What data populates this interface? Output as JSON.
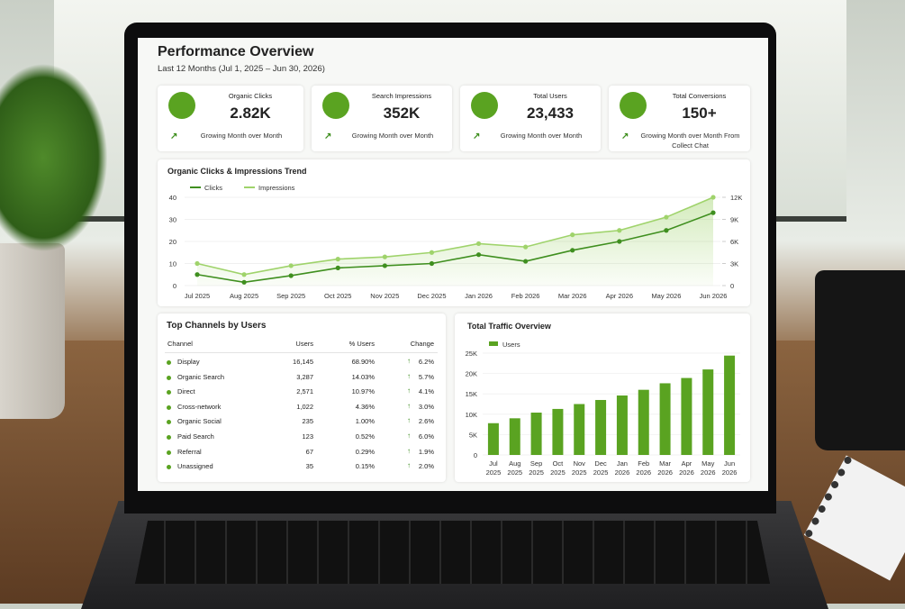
{
  "header": {
    "title": "Performance Overview",
    "subtitle": "Last 12 Months (Jul 1, 2025 – Jun 30, 2026)"
  },
  "kpis": [
    {
      "label": "Organic Clicks",
      "value": "2.82K",
      "note": "Growing Month over Month"
    },
    {
      "label": "Search Impressions",
      "value": "352K",
      "note": "Growing Month over Month"
    },
    {
      "label": "Total Users",
      "value": "23,433",
      "note": "Growing Month over Month"
    },
    {
      "label": "Total Conversions",
      "value": "150+",
      "note": "Growing Month over Month From Collect Chat"
    }
  ],
  "channels": {
    "title": "Top Channels by Users",
    "columns": [
      "Channel",
      "Users",
      "% Users",
      "Change"
    ],
    "rows": [
      [
        "Display",
        "16,145",
        "68.90%",
        "6.2%"
      ],
      [
        "Organic Search",
        "3,287",
        "14.03%",
        "5.7%"
      ],
      [
        "Direct",
        "2,571",
        "10.97%",
        "4.1%"
      ],
      [
        "Cross-network",
        "1,022",
        "4.36%",
        "3.0%"
      ],
      [
        "Organic Social",
        "235",
        "1.00%",
        "2.6%"
      ],
      [
        "Paid Search",
        "123",
        "0.52%",
        "6.0%"
      ],
      [
        "Referral",
        "67",
        "0.29%",
        "1.9%"
      ],
      [
        "Unassigned",
        "35",
        "0.15%",
        "2.0%"
      ]
    ]
  },
  "chart_data": [
    {
      "type": "line",
      "title": "Organic Clicks & Impressions Trend",
      "categories": [
        "Jul 2025",
        "Aug 2025",
        "Sep 2025",
        "Oct 2025",
        "Nov 2025",
        "Dec 2025",
        "Jan 2026",
        "Feb 2026",
        "Mar 2026",
        "Apr 2026",
        "May 2026",
        "Jun 2026"
      ],
      "series": [
        {
          "name": "Clicks",
          "color": "#3f8f1f",
          "values": [
            5,
            1.5,
            4.5,
            8,
            9,
            10,
            14,
            11,
            16,
            20,
            25,
            33
          ]
        },
        {
          "name": "Impressions",
          "color": "#9fd36b",
          "axis": "y2",
          "values": [
            3000,
            1500,
            2700,
            3600,
            3900,
            4500,
            5700,
            5250,
            6900,
            7500,
            9300,
            12000
          ]
        }
      ],
      "ylim": [
        0,
        40
      ],
      "yticks": [
        0,
        10,
        20,
        30,
        40
      ],
      "y2lim": [
        0,
        12000
      ],
      "y2ticks": [
        0,
        {
          "value": 3000,
          "label": "3K"
        },
        {
          "value": 6000,
          "label": "6K"
        },
        {
          "value": 9000,
          "label": "9K"
        },
        {
          "value": 12000,
          "label": "12K"
        }
      ],
      "legend": "top-left"
    },
    {
      "type": "bar",
      "title": "Total Traffic Overview",
      "categories": [
        "Jul 2025",
        "Aug 2025",
        "Sep 2025",
        "Oct 2025",
        "Nov 2025",
        "Dec 2025",
        "Jan 2026",
        "Feb 2026",
        "Mar 2026",
        "Apr 2026",
        "May 2026",
        "Jun 2026"
      ],
      "series": [
        {
          "name": "Users",
          "color": "#5aa321",
          "values": [
            7800,
            9000,
            10400,
            11300,
            12500,
            13500,
            14600,
            16000,
            17600,
            18900,
            21000,
            24400
          ]
        }
      ],
      "ylim": [
        0,
        25000
      ],
      "yticks": [
        0,
        {
          "value": 5000,
          "label": "5K"
        },
        {
          "value": 10000,
          "label": "10K"
        },
        {
          "value": 15000,
          "label": "15K"
        },
        {
          "value": 20000,
          "label": "20K"
        },
        {
          "value": 25000,
          "label": "25K"
        }
      ],
      "legend": "top-left"
    }
  ]
}
